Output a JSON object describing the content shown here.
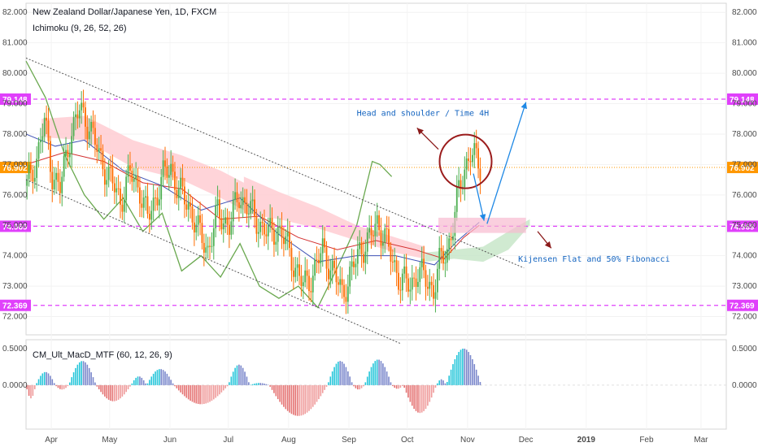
{
  "header": {
    "title": "New Zealand Dollar/Japanese Yen, 1D, FXCM",
    "indicator": "Ichimoku (9, 26, 52, 26)",
    "sub_indicator": "CM_Ult_MacD_MTF (60, 12, 26, 9)"
  },
  "colors": {
    "bull": "#26a69a",
    "bear": "#ef5350",
    "candle_orange": "#ff6d00",
    "candle_green": "#4caf50",
    "level_magenta": "#e040fb",
    "level_orange": "#ff9800",
    "arrow_blue": "#1e88e5",
    "arrow_red": "#8b1a1a",
    "cloud_red": "#ffcdd2",
    "cloud_green": "#c8e6c9",
    "chikou": "#6aa84f",
    "kijun": "#d32f2f",
    "tenkan": "#3f51b5"
  },
  "chart_data": {
    "type": "candlestick",
    "title": "New Zealand Dollar/Japanese Yen, 1D, FXCM",
    "price_axis": {
      "range": [
        71.4,
        82.3
      ],
      "ticks": [
        "82.000",
        "81.000",
        "80.000",
        "79.000",
        "78.000",
        "77.000",
        "76.000",
        "75.000",
        "74.000",
        "73.000",
        "72.000"
      ]
    },
    "time_axis": {
      "labels": [
        "Apr",
        "May",
        "Jun",
        "Jul",
        "Aug",
        "Sep",
        "Oct",
        "Nov",
        "Dec",
        "2019",
        "Feb",
        "Mar"
      ],
      "label_days": [
        13,
        43,
        74,
        104,
        135,
        166,
        196,
        227,
        257,
        288,
        319,
        347
      ],
      "range_days": [
        0,
        360
      ],
      "last_bar_day": 233
    },
    "levels": [
      {
        "name": "resistance",
        "value": 79.148,
        "label": "79.148",
        "style": "magenta-dashed"
      },
      {
        "name": "current",
        "value": 76.902,
        "label": "76.902",
        "style": "orange-dotted"
      },
      {
        "name": "support",
        "value": 74.969,
        "label": "74.969",
        "style": "magenta-dashed"
      },
      {
        "name": "low",
        "value": 72.369,
        "label": "72.369",
        "style": "magenta-dashed"
      }
    ],
    "ohlc_anchors": [
      [
        0,
        76.3
      ],
      [
        5,
        77.2
      ],
      [
        9,
        78.4
      ],
      [
        13,
        76.7
      ],
      [
        17,
        76.2
      ],
      [
        22,
        77.9
      ],
      [
        27,
        78.8
      ],
      [
        32,
        78.3
      ],
      [
        37,
        77.3
      ],
      [
        43,
        76.5
      ],
      [
        48,
        75.8
      ],
      [
        53,
        76.7
      ],
      [
        58,
        76.2
      ],
      [
        62,
        75.2
      ],
      [
        66,
        75.9
      ],
      [
        70,
        76.6
      ],
      [
        74,
        76.9
      ],
      [
        78,
        76.1
      ],
      [
        83,
        75.7
      ],
      [
        88,
        74.8
      ],
      [
        93,
        74.2
      ],
      [
        98,
        75.4
      ],
      [
        104,
        75.0
      ],
      [
        109,
        76.0
      ],
      [
        114,
        75.5
      ],
      [
        119,
        75.1
      ],
      [
        124,
        74.7
      ],
      [
        129,
        74.9
      ],
      [
        134,
        74.3
      ],
      [
        138,
        73.6
      ],
      [
        142,
        73.0
      ],
      [
        147,
        73.4
      ],
      [
        152,
        74.2
      ],
      [
        157,
        73.5
      ],
      [
        162,
        72.8
      ],
      [
        166,
        73.3
      ],
      [
        171,
        74.2
      ],
      [
        176,
        74.5
      ],
      [
        180,
        75.1
      ],
      [
        184,
        74.6
      ],
      [
        188,
        73.8
      ],
      [
        192,
        73.2
      ],
      [
        197,
        73.0
      ],
      [
        201,
        73.5
      ],
      [
        205,
        73.2
      ],
      [
        209,
        72.9
      ],
      [
        212,
        73.7
      ],
      [
        216,
        74.2
      ],
      [
        219,
        75.0
      ],
      [
        222,
        76.1
      ],
      [
        225,
        76.9
      ],
      [
        228,
        77.4
      ],
      [
        231,
        77.1
      ],
      [
        233,
        76.9
      ]
    ],
    "cloud": [
      {
        "from_day": 8,
        "to_day": 112,
        "top": [
          [
            8,
            78.5
          ],
          [
            30,
            78.6
          ],
          [
            55,
            77.8
          ],
          [
            80,
            77.3
          ],
          [
            100,
            76.8
          ],
          [
            112,
            76.4
          ]
        ],
        "bottom": [
          [
            8,
            77.9
          ],
          [
            30,
            77.8
          ],
          [
            55,
            76.9
          ],
          [
            80,
            76.5
          ],
          [
            100,
            75.9
          ],
          [
            112,
            75.5
          ]
        ],
        "fill": "cloud_red"
      },
      {
        "from_day": 112,
        "to_day": 205,
        "top": [
          [
            112,
            76.6
          ],
          [
            130,
            76.1
          ],
          [
            150,
            75.6
          ],
          [
            170,
            75.0
          ],
          [
            190,
            74.6
          ],
          [
            205,
            74.3
          ]
        ],
        "bottom": [
          [
            112,
            75.4
          ],
          [
            130,
            75.2
          ],
          [
            150,
            74.9
          ],
          [
            170,
            74.5
          ],
          [
            190,
            74.1
          ],
          [
            205,
            73.9
          ]
        ],
        "fill": "cloud_red"
      },
      {
        "from_day": 205,
        "to_day": 259,
        "top": [
          [
            205,
            74.1
          ],
          [
            220,
            74.2
          ],
          [
            235,
            74.3
          ],
          [
            248,
            74.8
          ],
          [
            259,
            75.2
          ]
        ],
        "bottom": [
          [
            205,
            73.8
          ],
          [
            220,
            73.9
          ],
          [
            235,
            73.8
          ],
          [
            248,
            74.2
          ],
          [
            259,
            75.0
          ]
        ],
        "fill": "cloud_green"
      }
    ],
    "chikou_span": [
      [
        0,
        80.4
      ],
      [
        10,
        79.2
      ],
      [
        20,
        77.3
      ],
      [
        30,
        76.0
      ],
      [
        40,
        75.2
      ],
      [
        50,
        75.9
      ],
      [
        60,
        74.8
      ],
      [
        70,
        75.4
      ],
      [
        80,
        73.5
      ],
      [
        90,
        74.0
      ],
      [
        100,
        73.3
      ],
      [
        110,
        74.4
      ],
      [
        120,
        73.0
      ],
      [
        130,
        72.6
      ],
      [
        140,
        73.0
      ],
      [
        150,
        72.3
      ],
      [
        160,
        73.6
      ],
      [
        170,
        75.0
      ],
      [
        178,
        77.1
      ],
      [
        182,
        77.0
      ],
      [
        188,
        76.6
      ]
    ],
    "kijun_line": [
      [
        0,
        77.0
      ],
      [
        20,
        77.4
      ],
      [
        40,
        77.1
      ],
      [
        60,
        76.4
      ],
      [
        80,
        76.2
      ],
      [
        100,
        75.2
      ],
      [
        120,
        75.3
      ],
      [
        140,
        74.6
      ],
      [
        160,
        74.2
      ],
      [
        180,
        74.5
      ],
      [
        200,
        74.2
      ],
      [
        215,
        73.9
      ],
      [
        225,
        74.6
      ],
      [
        233,
        75.0
      ]
    ],
    "tenkan_line": [
      [
        0,
        78.0
      ],
      [
        15,
        77.6
      ],
      [
        30,
        77.8
      ],
      [
        50,
        76.8
      ],
      [
        70,
        76.3
      ],
      [
        90,
        75.5
      ],
      [
        110,
        75.9
      ],
      [
        130,
        74.7
      ],
      [
        150,
        73.8
      ],
      [
        170,
        74.0
      ],
      [
        190,
        74.0
      ],
      [
        210,
        73.7
      ],
      [
        222,
        74.5
      ],
      [
        233,
        75.1
      ]
    ],
    "trendlines": [
      {
        "name": "channel-upper",
        "from": [
          0,
          80.5
        ],
        "to": [
          256,
          73.6
        ]
      },
      {
        "name": "channel-lower",
        "from": [
          0,
          76.5
        ],
        "to": [
          193,
          71.1
        ]
      }
    ],
    "annotations": [
      {
        "name": "head-and-shoulder",
        "text": "Head and shoulder / Time 4H",
        "day": 170,
        "price": 78.6
      },
      {
        "name": "kijensen-flat",
        "text": "Kijensen Flat and 50% Fibonacci",
        "day": 253,
        "price": 73.8
      }
    ],
    "macd": {
      "range": [
        -0.6,
        0.62
      ],
      "ticks": [
        "0.5000",
        "0.0000"
      ],
      "histogram": [
        {
          "from_day": 0,
          "to_day": 5,
          "peak": -0.18
        },
        {
          "from_day": 5,
          "to_day": 15,
          "peak": 0.18
        },
        {
          "from_day": 15,
          "to_day": 22,
          "peak": -0.06
        },
        {
          "from_day": 22,
          "to_day": 36,
          "peak": 0.33
        },
        {
          "from_day": 36,
          "to_day": 54,
          "peak": -0.22
        },
        {
          "from_day": 54,
          "to_day": 62,
          "peak": 0.12
        },
        {
          "from_day": 62,
          "to_day": 76,
          "peak": 0.22
        },
        {
          "from_day": 76,
          "to_day": 104,
          "peak": -0.26
        },
        {
          "from_day": 104,
          "to_day": 115,
          "peak": 0.28
        },
        {
          "from_day": 115,
          "to_day": 125,
          "peak": 0.03
        },
        {
          "from_day": 125,
          "to_day": 155,
          "peak": -0.42
        },
        {
          "from_day": 155,
          "to_day": 168,
          "peak": 0.33
        },
        {
          "from_day": 168,
          "to_day": 174,
          "peak": -0.06
        },
        {
          "from_day": 174,
          "to_day": 188,
          "peak": 0.35
        },
        {
          "from_day": 188,
          "to_day": 194,
          "peak": -0.05
        },
        {
          "from_day": 194,
          "to_day": 211,
          "peak": -0.38
        },
        {
          "from_day": 211,
          "to_day": 216,
          "peak": 0.08
        },
        {
          "from_day": 216,
          "to_day": 234,
          "peak": 0.5
        }
      ]
    }
  }
}
